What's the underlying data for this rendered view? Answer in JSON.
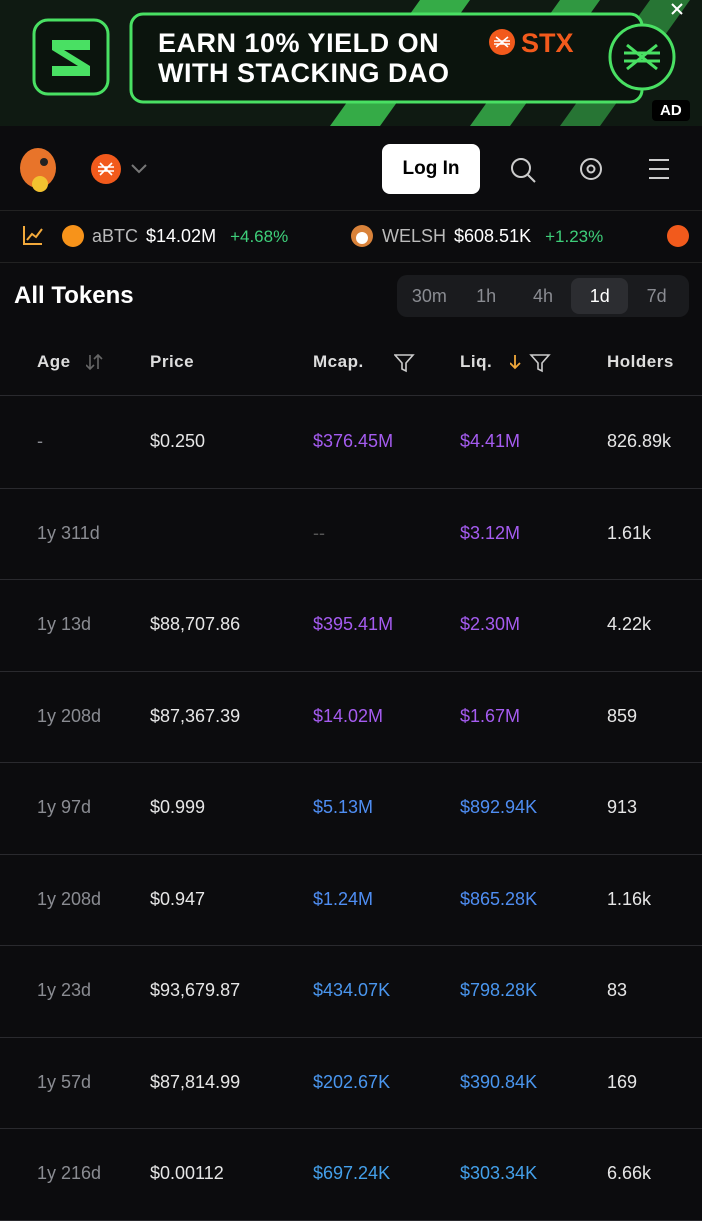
{
  "ad": {
    "line1": "EARN 10% YIELD ON",
    "token": "STX",
    "line2": "WITH STACKING DAO",
    "badge": "AD"
  },
  "nav": {
    "login": "Log In"
  },
  "ticker": [
    {
      "symbol": "aBTC",
      "mcap": "$14.02M",
      "change": "+4.68%"
    },
    {
      "symbol": "WELSH",
      "mcap": "$608.51K",
      "change": "+1.23%"
    }
  ],
  "section": {
    "title": "All Tokens",
    "timeframes": [
      "30m",
      "1h",
      "4h",
      "1d",
      "7d"
    ],
    "active_timeframe": 3
  },
  "table": {
    "headers": [
      "Age",
      "Price",
      "Mcap.",
      "Liq.",
      "Holders"
    ],
    "rows": [
      {
        "age": "-",
        "price": "$0.250",
        "mcap": "$376.45M",
        "liq": "$4.41M",
        "holders": "826.89k",
        "color": "#a55cf0"
      },
      {
        "age": "1y 311d",
        "price": null,
        "mcap": "--",
        "liq": "$3.12M",
        "holders": "1.61k",
        "color": "#a55cf0"
      },
      {
        "age": "1y 13d",
        "price": "$88,707.86",
        "mcap": "$395.41M",
        "liq": "$2.30M",
        "holders": "4.22k",
        "color": "#a55cf0"
      },
      {
        "age": "1y 208d",
        "price": "$87,367.39",
        "mcap": "$14.02M",
        "liq": "$1.67M",
        "holders": "859",
        "color": "#a55cf0"
      },
      {
        "age": "1y 97d",
        "price": "$0.999",
        "mcap": "$5.13M",
        "liq": "$892.94K",
        "holders": "913",
        "color": "#4f8ef3"
      },
      {
        "age": "1y 208d",
        "price": "$0.947",
        "mcap": "$1.24M",
        "liq": "$865.28K",
        "holders": "1.16k",
        "color": "#4f8ef3"
      },
      {
        "age": "1y 23d",
        "price": "$93,679.87",
        "mcap": "$434.07K",
        "liq": "$798.28K",
        "holders": "83",
        "color": "#4a96ee"
      },
      {
        "age": "1y 57d",
        "price": "$87,814.99",
        "mcap": "$202.67K",
        "liq": "$390.84K",
        "holders": "169",
        "color": "#4a96ee"
      },
      {
        "age": "1y 216d",
        "price": "$0.00112",
        "mcap": "$697.24K",
        "liq": "$303.34K",
        "holders": "6.66k",
        "color": "#44a0ea"
      }
    ]
  }
}
